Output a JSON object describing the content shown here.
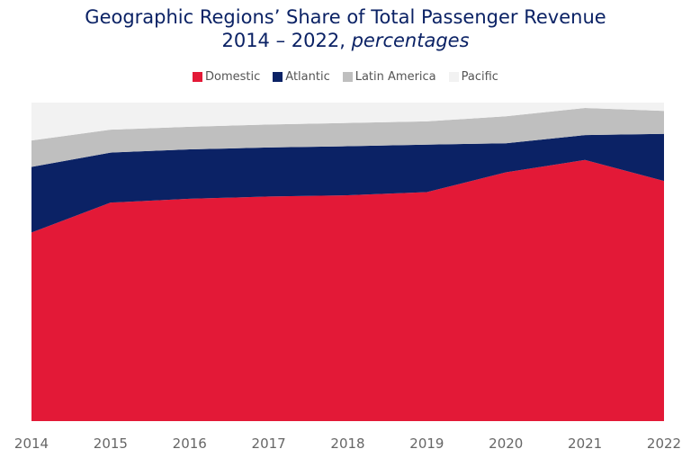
{
  "chart_data": {
    "type": "area",
    "stacked": true,
    "title": "Geographic Regions’ Share of Total Passenger Revenue",
    "subtitle_plain": "2014 – 2022, ",
    "subtitle_italic": "percentages",
    "xlabel": "",
    "ylabel": "",
    "ylim": [
      0,
      100
    ],
    "grid": false,
    "legend_position": "top",
    "categories": [
      "2014",
      "2015",
      "2016",
      "2017",
      "2018",
      "2019",
      "2020",
      "2021",
      "2022"
    ],
    "series": [
      {
        "name": "Domestic",
        "color": "#e31937",
        "values": [
          59.2,
          68.6,
          69.8,
          70.5,
          70.9,
          71.9,
          78.1,
          82.0,
          75.4
        ]
      },
      {
        "name": "Atlantic",
        "color": "#0b2265",
        "values": [
          20.6,
          15.7,
          15.5,
          15.4,
          15.4,
          14.9,
          9.1,
          7.8,
          14.8
        ]
      },
      {
        "name": "Latin America",
        "color": "#bfbfbf",
        "values": [
          8.3,
          7.2,
          7.1,
          7.2,
          7.3,
          7.3,
          8.5,
          8.5,
          7.2
        ]
      },
      {
        "name": "Pacific",
        "color": "#f2f2f2",
        "values": [
          11.9,
          8.5,
          7.6,
          6.9,
          6.4,
          5.9,
          4.3,
          1.7,
          2.6
        ]
      }
    ]
  }
}
